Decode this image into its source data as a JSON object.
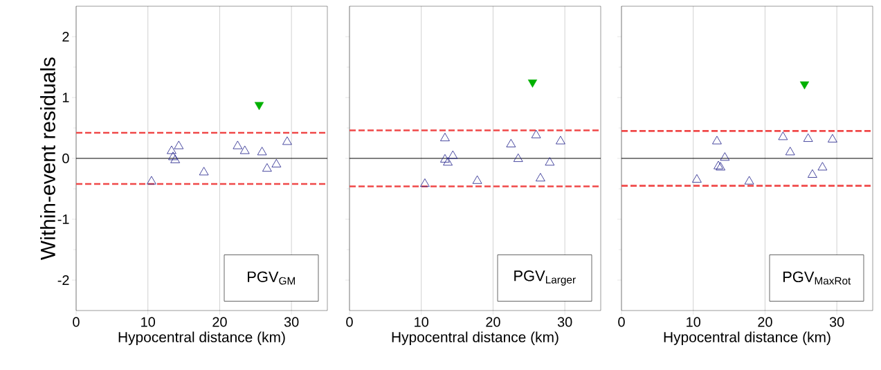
{
  "chart_data": [
    {
      "type": "scatter",
      "ylabel": "Within-event residuals",
      "xlabel": "Hypocentral distance (km)",
      "xlim": [
        0,
        35
      ],
      "ylim": [
        -2.5,
        2.5
      ],
      "xticks": [
        0,
        10,
        20,
        30
      ],
      "yticks": [
        -2,
        -1,
        0,
        1,
        2
      ],
      "grid": "x",
      "annotations": [
        "PGV$_{GM}$"
      ],
      "ref_lines": [
        {
          "axis": "y",
          "value": 0,
          "color": "#000000",
          "line_style": "solid"
        },
        {
          "axis": "y",
          "value": 0.42,
          "color": "#f04848",
          "line_style": "dashed"
        },
        {
          "axis": "y",
          "value": -0.42,
          "color": "#f04848",
          "line_style": "dashed"
        }
      ],
      "series": [
        {
          "color": "#1c1c88",
          "marker": "triangle",
          "x": [
            10.5,
            13.3,
            13.5,
            13.8,
            14.3,
            17.8,
            22.5,
            23.5,
            25.9,
            26.6,
            27.9,
            29.4
          ],
          "values": [
            -0.38,
            0.12,
            0.02,
            -0.03,
            0.2,
            -0.23,
            0.2,
            0.12,
            0.1,
            -0.17,
            -0.1,
            0.27
          ]
        },
        {
          "color": "#00b000",
          "marker": "triangle down",
          "x": [
            25.5
          ],
          "values": [
            0.88
          ]
        }
      ]
    },
    {
      "type": "scatter",
      "xlabel": "Hypocentral distance (km)",
      "xlim": [
        0,
        35
      ],
      "ylim": [
        -2.5,
        2.5
      ],
      "xticks": [
        0,
        10,
        20,
        30
      ],
      "yticks": [
        -2,
        -1,
        0,
        1,
        2
      ],
      "tick_labels": "x",
      "grid": "x",
      "annotations": [
        "PGV$_{Larger}$"
      ],
      "ref_lines": [
        {
          "axis": "y",
          "value": 0,
          "color": "#000000",
          "line_style": "solid"
        },
        {
          "axis": "y",
          "value": 0.46,
          "color": "#f04848",
          "line_style": "dashed"
        },
        {
          "axis": "y",
          "value": -0.46,
          "color": "#f04848",
          "line_style": "dashed"
        }
      ],
      "series": [
        {
          "color": "#1c1c88",
          "marker": "triangle",
          "x": [
            10.5,
            13.3,
            13.3,
            13.7,
            14.4,
            17.8,
            22.5,
            23.5,
            26.0,
            26.6,
            27.9,
            29.4
          ],
          "values": [
            -0.42,
            0.33,
            -0.02,
            -0.07,
            0.04,
            -0.37,
            0.23,
            -0.01,
            0.38,
            -0.33,
            -0.07,
            0.28
          ]
        },
        {
          "color": "#00b000",
          "marker": "triangle down",
          "x": [
            25.5
          ],
          "values": [
            1.25
          ]
        }
      ]
    },
    {
      "type": "scatter",
      "xlabel": "Hypocentral distance (km)",
      "xlim": [
        0,
        35
      ],
      "ylim": [
        -2.5,
        2.5
      ],
      "xticks": [
        0,
        10,
        20,
        30
      ],
      "yticks": [
        -2,
        -1,
        0,
        1,
        2
      ],
      "tick_labels": "x",
      "grid": "x",
      "annotations": [
        "PGV$_{MaxRot}$"
      ],
      "ref_lines": [
        {
          "axis": "y",
          "value": 0,
          "color": "#000000",
          "line_style": "solid"
        },
        {
          "axis": "y",
          "value": 0.45,
          "color": "#f04848",
          "line_style": "dashed"
        },
        {
          "axis": "y",
          "value": -0.45,
          "color": "#f04848",
          "line_style": "dashed"
        }
      ],
      "series": [
        {
          "color": "#1c1c88",
          "marker": "triangle",
          "x": [
            10.5,
            13.3,
            13.5,
            13.8,
            14.4,
            17.8,
            22.5,
            23.5,
            26.0,
            26.6,
            28.0,
            29.4
          ],
          "values": [
            -0.35,
            0.28,
            -0.13,
            -0.15,
            0.01,
            -0.38,
            0.35,
            0.1,
            0.32,
            -0.27,
            -0.15,
            0.31
          ]
        },
        {
          "color": "#00b000",
          "marker": "triangle down",
          "x": [
            25.5
          ],
          "values": [
            1.22
          ]
        }
      ]
    }
  ]
}
